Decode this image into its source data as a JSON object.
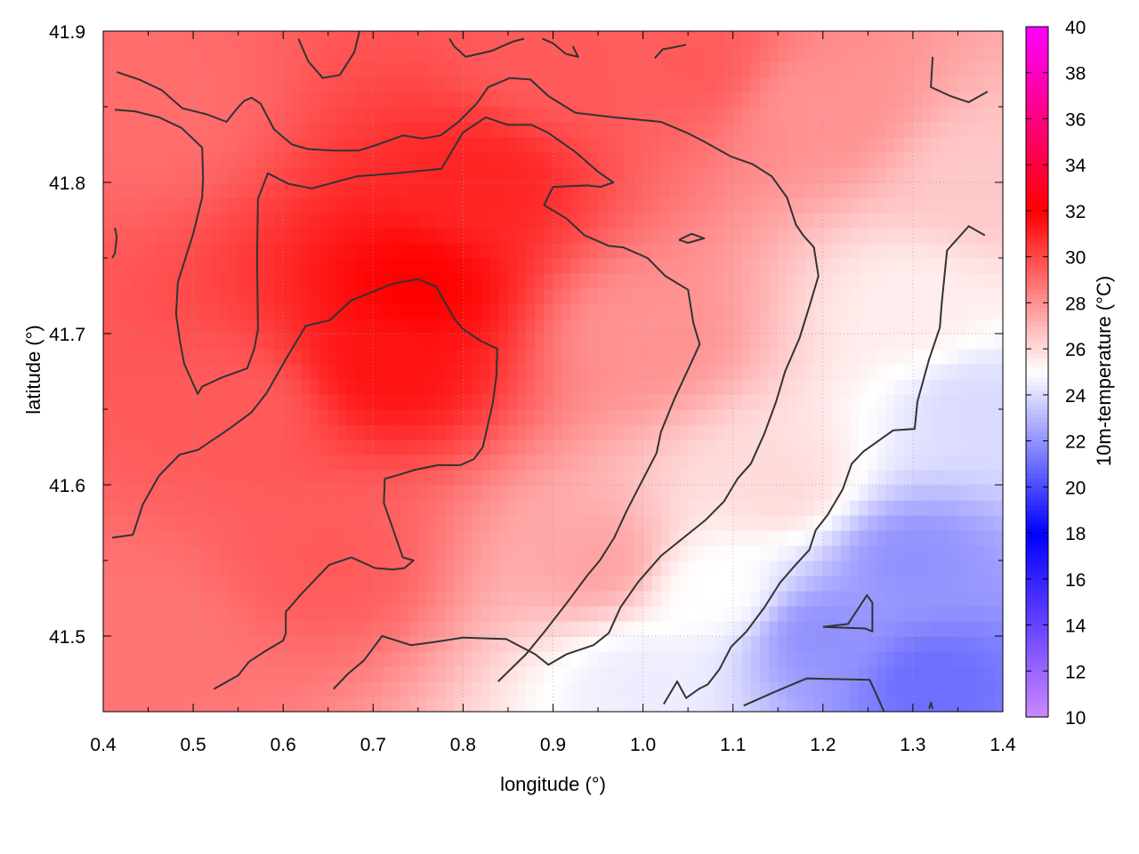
{
  "chart_data": {
    "type": "heatmap",
    "title": "",
    "xlabel": "longitude (°)",
    "ylabel": "latitude (°)",
    "colorbar_label": "10m-temperature (°C)",
    "xlim": [
      0.4,
      1.4
    ],
    "ylim": [
      41.45,
      41.9
    ],
    "x_ticks": [
      0.4,
      0.5,
      0.6,
      0.7,
      0.8,
      0.9,
      1.0,
      1.1,
      1.2,
      1.3,
      1.4
    ],
    "x_tick_labels": [
      "0.4",
      "0.5",
      "0.6",
      "0.7",
      "0.8",
      "0.9",
      "1.0",
      "1.1",
      "1.2",
      "1.3",
      "1.4"
    ],
    "y_ticks": [
      41.5,
      41.6,
      41.7,
      41.8,
      41.9
    ],
    "y_tick_labels": [
      "41.5",
      "41.6",
      "41.7",
      "41.8",
      "41.9"
    ],
    "colorbar_range": [
      10,
      40
    ],
    "colorbar_ticks": [
      10,
      12,
      14,
      16,
      18,
      20,
      22,
      24,
      26,
      28,
      30,
      32,
      34,
      36,
      38,
      40
    ],
    "colorbar_tick_labels": [
      "10",
      "12",
      "14",
      "16",
      "18",
      "20",
      "22",
      "24",
      "26",
      "28",
      "30",
      "32",
      "34",
      "36",
      "38",
      "40"
    ],
    "colorscale": [
      {
        "value": 10,
        "color": "#cc88ff"
      },
      {
        "value": 18,
        "color": "#0000ff"
      },
      {
        "value": 25,
        "color": "#ffffff"
      },
      {
        "value": 32,
        "color": "#ff0000"
      },
      {
        "value": 40,
        "color": "#ff00ff"
      }
    ],
    "grid": true,
    "temperature_anchors": [
      {
        "lon": 0.45,
        "lat": 41.85,
        "t": 29.0
      },
      {
        "lon": 0.55,
        "lat": 41.65,
        "t": 29.5
      },
      {
        "lon": 0.45,
        "lat": 41.5,
        "t": 28.8
      },
      {
        "lon": 0.72,
        "lat": 41.68,
        "t": 31.5
      },
      {
        "lon": 0.75,
        "lat": 41.73,
        "t": 32.0
      },
      {
        "lon": 0.82,
        "lat": 41.8,
        "t": 31.0
      },
      {
        "lon": 0.65,
        "lat": 41.55,
        "t": 29.5
      },
      {
        "lon": 0.9,
        "lat": 41.88,
        "t": 29.5
      },
      {
        "lon": 1.05,
        "lat": 41.88,
        "t": 29.5
      },
      {
        "lon": 1.0,
        "lat": 41.7,
        "t": 28.0
      },
      {
        "lon": 0.95,
        "lat": 41.55,
        "t": 27.5
      },
      {
        "lon": 1.2,
        "lat": 41.85,
        "t": 28.0
      },
      {
        "lon": 1.38,
        "lat": 41.8,
        "t": 26.5
      },
      {
        "lon": 1.3,
        "lat": 41.72,
        "t": 25.5
      },
      {
        "lon": 1.08,
        "lat": 41.53,
        "t": 25.0
      },
      {
        "lon": 1.15,
        "lat": 41.6,
        "t": 26.0
      },
      {
        "lon": 1.2,
        "lat": 41.5,
        "t": 22.0
      },
      {
        "lon": 1.3,
        "lat": 41.55,
        "t": 22.0
      },
      {
        "lon": 1.32,
        "lat": 41.47,
        "t": 21.0
      },
      {
        "lon": 1.38,
        "lat": 41.65,
        "t": 24.0
      },
      {
        "lon": 1.0,
        "lat": 41.47,
        "t": 24.5
      }
    ],
    "contours": [
      [
        [
          0.415,
          41.873
        ],
        [
          0.44,
          41.868
        ],
        [
          0.465,
          41.861
        ],
        [
          0.488,
          41.849
        ],
        [
          0.515,
          41.845
        ],
        [
          0.537,
          41.84
        ],
        [
          0.549,
          41.849
        ],
        [
          0.557,
          41.854
        ],
        [
          0.565,
          41.856
        ],
        [
          0.575,
          41.852
        ],
        [
          0.59,
          41.835
        ],
        [
          0.61,
          41.825
        ],
        [
          0.628,
          41.822
        ],
        [
          0.655,
          41.821
        ],
        [
          0.684,
          41.821
        ],
        [
          0.705,
          41.825
        ],
        [
          0.733,
          41.831
        ],
        [
          0.755,
          41.829
        ],
        [
          0.775,
          41.831
        ],
        [
          0.795,
          41.84
        ],
        [
          0.815,
          41.852
        ],
        [
          0.828,
          41.863
        ],
        [
          0.852,
          41.869
        ],
        [
          0.875,
          41.868
        ],
        [
          0.895,
          41.857
        ],
        [
          0.925,
          41.846
        ],
        [
          0.968,
          41.843
        ],
        [
          1.02,
          41.84
        ],
        [
          1.048,
          41.833
        ],
        [
          1.068,
          41.827
        ],
        [
          1.098,
          41.817
        ],
        [
          1.122,
          41.812
        ],
        [
          1.143,
          41.804
        ],
        [
          1.16,
          41.79
        ],
        [
          1.17,
          41.772
        ],
        [
          1.178,
          41.765
        ],
        [
          1.19,
          41.757
        ],
        [
          1.195,
          41.738
        ],
        [
          1.185,
          41.718
        ],
        [
          1.174,
          41.697
        ],
        [
          1.158,
          41.675
        ],
        [
          1.148,
          41.655
        ],
        [
          1.135,
          41.634
        ],
        [
          1.12,
          41.614
        ],
        [
          1.105,
          41.604
        ],
        [
          1.09,
          41.589
        ],
        [
          1.07,
          41.577
        ],
        [
          1.045,
          41.565
        ],
        [
          1.02,
          41.553
        ],
        [
          0.995,
          41.536
        ],
        [
          0.975,
          41.519
        ],
        [
          0.962,
          41.502
        ],
        [
          0.945,
          41.494
        ],
        [
          0.915,
          41.488
        ],
        [
          0.895,
          41.481
        ],
        [
          0.88,
          41.488
        ],
        [
          0.848,
          41.498
        ],
        [
          0.8,
          41.499
        ],
        [
          0.768,
          41.496
        ],
        [
          0.742,
          41.494
        ],
        [
          0.71,
          41.5
        ],
        [
          0.69,
          41.484
        ],
        [
          0.672,
          41.475
        ],
        [
          0.656,
          41.465
        ]
      ],
      [
        [
          0.413,
          41.848
        ],
        [
          0.435,
          41.847
        ],
        [
          0.462,
          41.843
        ],
        [
          0.487,
          41.836
        ],
        [
          0.51,
          41.823
        ],
        [
          0.511,
          41.803
        ],
        [
          0.51,
          41.79
        ],
        [
          0.5,
          41.766
        ],
        [
          0.483,
          41.734
        ],
        [
          0.481,
          41.713
        ],
        [
          0.485,
          41.696
        ],
        [
          0.49,
          41.68
        ],
        [
          0.505,
          41.66
        ],
        [
          0.51,
          41.665
        ],
        [
          0.532,
          41.671
        ],
        [
          0.56,
          41.677
        ],
        [
          0.568,
          41.69
        ],
        [
          0.572,
          41.703
        ],
        [
          0.571,
          41.749
        ],
        [
          0.572,
          41.789
        ],
        [
          0.583,
          41.806
        ],
        [
          0.606,
          41.799
        ],
        [
          0.632,
          41.796
        ],
        [
          0.682,
          41.804
        ],
        [
          0.725,
          41.806
        ],
        [
          0.776,
          41.809
        ],
        [
          0.8,
          41.833
        ],
        [
          0.825,
          41.843
        ],
        [
          0.85,
          41.838
        ],
        [
          0.876,
          41.838
        ],
        [
          0.894,
          41.833
        ],
        [
          0.925,
          41.82
        ],
        [
          0.95,
          41.807
        ],
        [
          0.967,
          41.8
        ],
        [
          0.953,
          41.797
        ],
        [
          0.938,
          41.798
        ],
        [
          0.9,
          41.797
        ],
        [
          0.89,
          41.785
        ],
        [
          0.915,
          41.776
        ],
        [
          0.935,
          41.765
        ],
        [
          0.962,
          41.758
        ],
        [
          0.978,
          41.757
        ],
        [
          1.005,
          41.75
        ],
        [
          1.025,
          41.738
        ],
        [
          1.05,
          41.729
        ],
        [
          1.056,
          41.707
        ],
        [
          1.063,
          41.693
        ],
        [
          1.053,
          41.68
        ],
        [
          1.035,
          41.657
        ],
        [
          1.02,
          41.635
        ],
        [
          1.015,
          41.621
        ],
        [
          1.002,
          41.606
        ],
        [
          0.982,
          41.583
        ],
        [
          0.968,
          41.565
        ],
        [
          0.952,
          41.55
        ],
        [
          0.938,
          41.54
        ],
        [
          0.918,
          41.524
        ],
        [
          0.892,
          41.504
        ],
        [
          0.87,
          41.488
        ],
        [
          0.839,
          41.47
        ]
      ],
      [
        [
          0.41,
          41.565
        ],
        [
          0.433,
          41.567
        ],
        [
          0.444,
          41.587
        ],
        [
          0.462,
          41.606
        ],
        [
          0.485,
          41.62
        ],
        [
          0.505,
          41.623
        ],
        [
          0.54,
          41.637
        ],
        [
          0.565,
          41.648
        ],
        [
          0.582,
          41.661
        ],
        [
          0.603,
          41.683
        ],
        [
          0.625,
          41.705
        ],
        [
          0.652,
          41.709
        ],
        [
          0.676,
          41.722
        ],
        [
          0.722,
          41.733
        ],
        [
          0.75,
          41.736
        ],
        [
          0.77,
          41.731
        ],
        [
          0.79,
          41.71
        ],
        [
          0.8,
          41.703
        ],
        [
          0.82,
          41.695
        ],
        [
          0.838,
          41.69
        ],
        [
          0.837,
          41.672
        ],
        [
          0.833,
          41.654
        ],
        [
          0.822,
          41.625
        ],
        [
          0.812,
          41.617
        ],
        [
          0.797,
          41.613
        ],
        [
          0.772,
          41.613
        ],
        [
          0.747,
          41.61
        ],
        [
          0.725,
          41.606
        ],
        [
          0.713,
          41.604
        ],
        [
          0.712,
          41.588
        ],
        [
          0.719,
          41.576
        ],
        [
          0.733,
          41.552
        ],
        [
          0.745,
          41.55
        ],
        [
          0.735,
          41.545
        ],
        [
          0.722,
          41.544
        ],
        [
          0.702,
          41.545
        ],
        [
          0.676,
          41.552
        ],
        [
          0.651,
          41.547
        ],
        [
          0.635,
          41.537
        ],
        [
          0.619,
          41.527
        ],
        [
          0.603,
          41.516
        ],
        [
          0.603,
          41.502
        ],
        [
          0.6,
          41.497
        ],
        [
          0.58,
          41.49
        ],
        [
          0.562,
          41.483
        ],
        [
          0.55,
          41.474
        ],
        [
          0.523,
          41.465
        ]
      ],
      [
        [
          0.617,
          41.895
        ],
        [
          0.628,
          41.88
        ],
        [
          0.644,
          41.869
        ],
        [
          0.663,
          41.871
        ],
        [
          0.679,
          41.886
        ],
        [
          0.685,
          41.9
        ]
      ],
      [
        [
          0.785,
          41.895
        ],
        [
          0.79,
          41.89
        ],
        [
          0.803,
          41.883
        ],
        [
          0.832,
          41.887
        ],
        [
          0.855,
          41.893
        ],
        [
          0.868,
          41.895
        ]
      ],
      [
        [
          0.888,
          41.895
        ],
        [
          0.9,
          41.892
        ],
        [
          0.914,
          41.885
        ],
        [
          0.928,
          41.883
        ],
        [
          0.922,
          41.89
        ]
      ],
      [
        [
          1.013,
          41.882
        ],
        [
          1.022,
          41.888
        ],
        [
          1.032,
          41.889
        ],
        [
          1.048,
          41.891
        ]
      ],
      [
        [
          1.322,
          41.883
        ],
        [
          1.32,
          41.863
        ],
        [
          1.342,
          41.857
        ],
        [
          1.362,
          41.853
        ],
        [
          1.383,
          41.86
        ]
      ],
      [
        [
          0.413,
          41.77
        ],
        [
          0.415,
          41.764
        ],
        [
          0.413,
          41.753
        ],
        [
          0.41,
          41.75
        ]
      ],
      [
        [
          1.04,
          41.762
        ],
        [
          1.054,
          41.766
        ],
        [
          1.068,
          41.763
        ],
        [
          1.05,
          41.76
        ],
        [
          1.04,
          41.762
        ]
      ],
      [
        [
          1.38,
          41.765
        ],
        [
          1.362,
          41.771
        ],
        [
          1.338,
          41.755
        ],
        [
          1.332,
          41.72
        ],
        [
          1.33,
          41.704
        ],
        [
          1.318,
          41.683
        ],
        [
          1.305,
          41.655
        ],
        [
          1.302,
          41.637
        ],
        [
          1.278,
          41.636
        ],
        [
          1.245,
          41.622
        ],
        [
          1.232,
          41.614
        ],
        [
          1.222,
          41.597
        ],
        [
          1.205,
          41.58
        ],
        [
          1.192,
          41.57
        ],
        [
          1.185,
          41.557
        ],
        [
          1.168,
          41.546
        ],
        [
          1.152,
          41.535
        ],
        [
          1.135,
          41.519
        ],
        [
          1.115,
          41.503
        ],
        [
          1.098,
          41.493
        ],
        [
          1.085,
          41.478
        ],
        [
          1.072,
          41.468
        ],
        [
          1.062,
          41.465
        ],
        [
          1.048,
          41.459
        ],
        [
          1.038,
          41.47
        ],
        [
          1.023,
          41.455
        ]
      ],
      [
        [
          1.2,
          41.506
        ],
        [
          1.228,
          41.508
        ],
        [
          1.249,
          41.527
        ],
        [
          1.255,
          41.522
        ],
        [
          1.255,
          41.503
        ],
        [
          1.247,
          41.505
        ],
        [
          1.2,
          41.506
        ]
      ],
      [
        [
          1.112,
          41.454
        ],
        [
          1.146,
          41.463
        ],
        [
          1.182,
          41.472
        ],
        [
          1.252,
          41.471
        ],
        [
          1.262,
          41.458
        ],
        [
          1.268,
          41.45
        ]
      ],
      [
        [
          1.318,
          41.452
        ],
        [
          1.32,
          41.456
        ],
        [
          1.322,
          41.452
        ]
      ]
    ]
  }
}
